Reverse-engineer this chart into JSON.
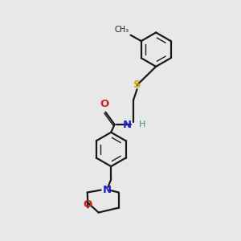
{
  "bg_color": "#e8e8e8",
  "bond_color": "#1a1a1a",
  "S_color": "#ccaa00",
  "N_color": "#2222cc",
  "O_color": "#cc2222",
  "H_color": "#4a8888",
  "C_color": "#1a1a1a",
  "figsize": [
    3.0,
    3.0
  ],
  "dpi": 100,
  "xlim": [
    0,
    10
  ],
  "ylim": [
    0,
    10
  ]
}
